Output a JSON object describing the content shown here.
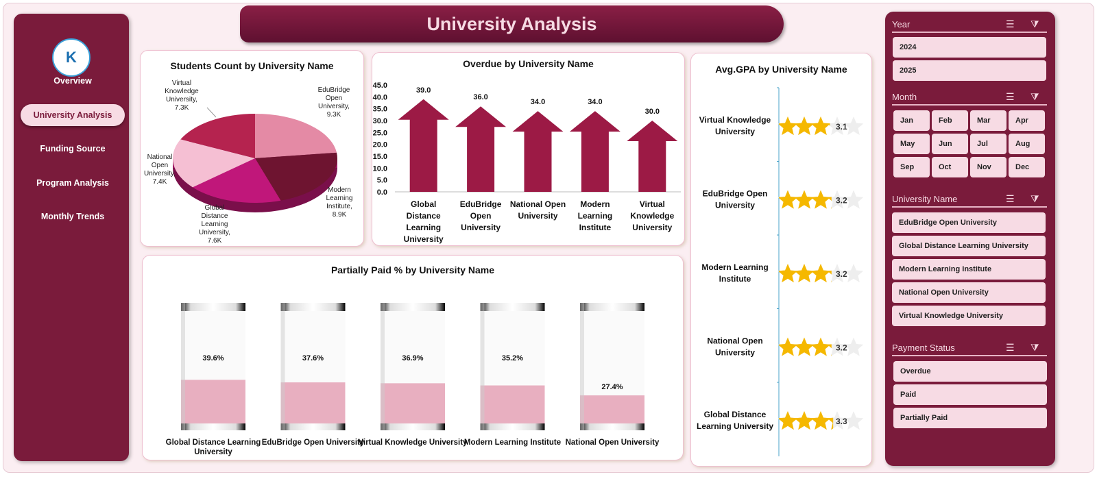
{
  "title": "University  Analysis",
  "logo_text": "K",
  "nav": [
    "Overview",
    "University Analysis",
    "Funding Source",
    "Program Analysis",
    "Monthly Trends"
  ],
  "nav_active": 1,
  "slicers": {
    "year": {
      "label": "Year",
      "items": [
        "2024",
        "2025"
      ]
    },
    "month": {
      "label": "Month",
      "items": [
        "Jan",
        "Feb",
        "Mar",
        "Apr",
        "May",
        "Jun",
        "Jul",
        "Aug",
        "Sep",
        "Oct",
        "Nov",
        "Dec"
      ]
    },
    "university": {
      "label": "University Name",
      "items": [
        "EduBridge Open University",
        "Global Distance Learning University",
        "Modern Learning Institute",
        "National Open University",
        "Virtual Knowledge University"
      ]
    },
    "payment": {
      "label": "Payment Status",
      "items": [
        "Overdue",
        "Paid",
        "Partially Paid"
      ]
    }
  },
  "chart_data": [
    {
      "type": "pie",
      "title": "Students Count by University Name",
      "categories": [
        "EduBridge Open University",
        "Modern Learning Institute",
        "Global Distance Learning University",
        "National Open University",
        "Virtual Knowledge University"
      ],
      "values": [
        9.3,
        8.9,
        7.6,
        7.4,
        7.3
      ],
      "unit": "K",
      "labels": [
        "EduBridge Open University, 9.3K",
        "Modern Learning Institute, 8.9K",
        "Global Distance Learning University, 7.6K",
        "National Open University, 7.4K",
        "Virtual Knowledge University, 7.3K"
      ],
      "colors": [
        "#e48aa5",
        "#6e1430",
        "#c0177a",
        "#f5bfd3",
        "#b5234f"
      ]
    },
    {
      "type": "bar",
      "title": "Overdue by University Name",
      "categories": [
        "Global Distance Learning University",
        "EduBridge Open University",
        "National Open University",
        "Modern Learning Institute",
        "Virtual Knowledge University"
      ],
      "values": [
        39.0,
        36.0,
        34.0,
        34.0,
        30.0
      ],
      "ylim": [
        0,
        45
      ],
      "yticks": [
        "0.0",
        "5.0",
        "10.0",
        "15.0",
        "20.0",
        "25.0",
        "30.0",
        "35.0",
        "40.0",
        "45.0"
      ],
      "value_labels": [
        "39.0",
        "36.0",
        "34.0",
        "34.0",
        "30.0"
      ],
      "color": "#9c1a45"
    },
    {
      "type": "bar",
      "title": "Avg.GPA by University Name",
      "categories": [
        "Virtual Knowledge University",
        "EduBridge Open University",
        "Modern Learning Institute",
        "National Open University",
        "Global Distance Learning University"
      ],
      "values": [
        3.1,
        3.2,
        3.2,
        3.2,
        3.3
      ],
      "max": 5,
      "value_labels": [
        "3.1",
        "3.2",
        "3.2",
        "3.2",
        "3.3"
      ],
      "color": "#f5b800"
    },
    {
      "type": "bar",
      "title": "Partially Paid % by University Name",
      "categories": [
        "Global Distance Learning University",
        "EduBridge Open University",
        "Virtual Knowledge University",
        "Modern Learning Institute",
        "National Open University"
      ],
      "values": [
        39.6,
        37.6,
        36.9,
        35.2,
        27.4
      ],
      "ylim": [
        0,
        100
      ],
      "value_labels": [
        "39.6%",
        "37.6%",
        "36.9%",
        "35.2%",
        "27.4%"
      ],
      "color": "#e8afc0"
    }
  ]
}
